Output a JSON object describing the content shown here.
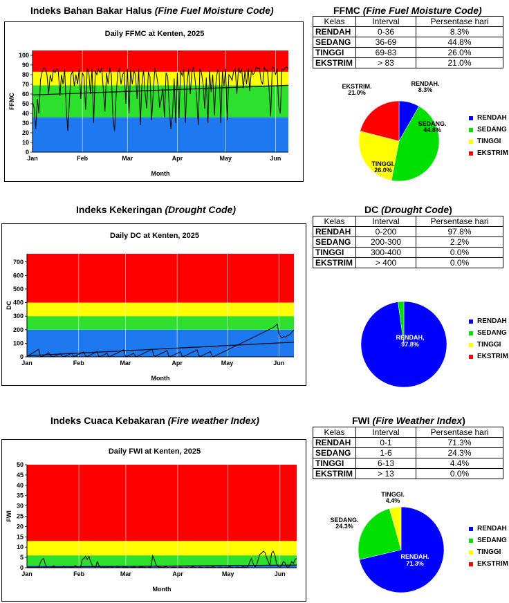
{
  "colors": {
    "rendah": "#1e78f0",
    "sedang": "#2ee02e",
    "tinggi": "#ffff00",
    "ekstrim": "#ff0000",
    "pie_rendah": "#0000ff",
    "pie_sedang": "#00e000",
    "pie_tinggi": "#ffff00",
    "pie_ekstrim": "#ff0000"
  },
  "months": [
    "Jan",
    "Feb",
    "Mar",
    "Apr",
    "May",
    "Jun"
  ],
  "sections": [
    {
      "title_main": "Indeks Bahan Bakar Halus ",
      "title_italic": "(Fine Fuel Moisture Code)",
      "table_title_main": "FFMC ",
      "table_title_italic": "(Fine Fuel Moisture Code)",
      "headers": [
        "Kelas",
        "Interval",
        "Persentase hari"
      ],
      "rows": [
        {
          "kelas": "RENDAH",
          "interval": "0-36",
          "pct": "8.3%"
        },
        {
          "kelas": "SEDANG",
          "interval": "36-69",
          "pct": "44.8%"
        },
        {
          "kelas": "TINGGI",
          "interval": "69-83",
          "pct": "26.0%"
        },
        {
          "kelas": "EKSTRIM",
          "interval": "> 83",
          "pct": "21.0%"
        }
      ],
      "pie_labels": [
        {
          "name": "RENDAH.",
          "pct": "8.3%"
        },
        {
          "name": "SEDANG.",
          "pct": "44.8%"
        },
        {
          "name": "TINGGI.",
          "pct": "26.0%"
        },
        {
          "name": "EKSTRIM.",
          "pct": "21.0%"
        }
      ],
      "legend": [
        "RENDAH",
        "SEDANG",
        "TINGGI",
        "EKSTRIM"
      ]
    },
    {
      "title_main": "Indeks Kekeringan ",
      "title_italic": "(Drought Code)",
      "table_title_main": "DC ",
      "table_title_italic": "(Drought Code",
      "table_title_tail": ")",
      "headers": [
        "Kelas",
        "Interval",
        "Persentase hari"
      ],
      "rows": [
        {
          "kelas": "RENDAH",
          "interval": "0-200",
          "pct": "97.8%"
        },
        {
          "kelas": "SEDANG",
          "interval": "200-300",
          "pct": "2.2%"
        },
        {
          "kelas": "TINGGI",
          "interval": "300-400",
          "pct": "0.0%"
        },
        {
          "kelas": "EKSTRIM",
          "interval": "> 400",
          "pct": "0.0%"
        }
      ],
      "pie_labels": [
        {
          "name": "RENDAH,",
          "pct": "97.8%"
        }
      ],
      "legend": [
        "RENDAH",
        "SEDANG",
        "TINGGI",
        "EKSTRIM"
      ]
    },
    {
      "title_main": "Indeks Cuaca Kebakaran ",
      "title_italic": "(Fire weather Index)",
      "table_title_main": "FWI ",
      "table_title_italic": "(Fire Weather Index",
      "table_title_tail": ")",
      "headers": [
        "Kelas",
        "Interval",
        "Persentase hari"
      ],
      "rows": [
        {
          "kelas": "RENDAH",
          "interval": "0-1",
          "pct": "71.3%"
        },
        {
          "kelas": "SEDANG",
          "interval": "1-6",
          "pct": "24.3%"
        },
        {
          "kelas": "TINGGI",
          "interval": "6-13",
          "pct": "4.4%"
        },
        {
          "kelas": "EKSTRIM",
          "interval": "> 13",
          "pct": "0.0%"
        }
      ],
      "pie_labels": [
        {
          "name": "RENDAH.",
          "pct": "71.3%"
        },
        {
          "name": "SEDANG.",
          "pct": "24.3%"
        },
        {
          "name": "TINGGI.",
          "pct": "4.4%"
        }
      ],
      "legend": [
        "RENDAH",
        "SEDANG",
        "TINGGI",
        "EKSTRIM"
      ]
    }
  ],
  "chart_data": [
    {
      "type": "line",
      "title": "Daily FFMC at Kenten, 2025",
      "xlabel": "Month",
      "ylabel": "FFMC",
      "ylim": [
        0,
        105
      ],
      "yticks": [
        0,
        10,
        20,
        30,
        40,
        50,
        60,
        70,
        80,
        90,
        100
      ],
      "xticks": [
        "Jan",
        "Feb",
        "Mar",
        "Apr",
        "May",
        "Jun"
      ],
      "bands": [
        [
          0,
          36,
          "rendah"
        ],
        [
          36,
          69,
          "sedang"
        ],
        [
          69,
          83,
          "tinggi"
        ],
        [
          83,
          105,
          "ekstrim"
        ]
      ],
      "trend": [
        59,
        69
      ],
      "series": [
        {
          "values": [
            52,
            46,
            24,
            55,
            40,
            75,
            83,
            87,
            86,
            80,
            60,
            80,
            73,
            85,
            82,
            86,
            85,
            58,
            80,
            70,
            86,
            43,
            22,
            55,
            80,
            84,
            68,
            80,
            70,
            86,
            55,
            82,
            78,
            44,
            86,
            83,
            60,
            86,
            30,
            84,
            80,
            86,
            82,
            87,
            65,
            42,
            82,
            70,
            87,
            80,
            35,
            22,
            60,
            82,
            86,
            70,
            80,
            83,
            50,
            86,
            40,
            85,
            70,
            84,
            80,
            55,
            86,
            28,
            70,
            85,
            60,
            45,
            83,
            78,
            33,
            60,
            87,
            80,
            70,
            46,
            55,
            66,
            36,
            82,
            78,
            45,
            24,
            40,
            76,
            30,
            82,
            35,
            84,
            79,
            86,
            30,
            70,
            86,
            60,
            82,
            88,
            76,
            56,
            28,
            86,
            82,
            70,
            45,
            77,
            30,
            84,
            62,
            80,
            38,
            72,
            85,
            83,
            30,
            84,
            68,
            86,
            33,
            80,
            78,
            74,
            84,
            86,
            60,
            87,
            82,
            86,
            66,
            84,
            70,
            87,
            63,
            85,
            80,
            82,
            88,
            86,
            87,
            74,
            70,
            88,
            84,
            85,
            65,
            37,
            88,
            87,
            80,
            86,
            48,
            40,
            86,
            85,
            87,
            88,
            86
          ]
        }
      ]
    },
    {
      "type": "line",
      "title": "Daily DC at Kenten, 2025",
      "xlabel": "Month",
      "ylabel": "DC",
      "ylim": [
        0,
        760
      ],
      "yticks": [
        0,
        100,
        200,
        300,
        400,
        500,
        600,
        700
      ],
      "xticks": [
        "Jan",
        "Feb",
        "Mar",
        "Apr",
        "May",
        "Jun"
      ],
      "bands": [
        [
          0,
          200,
          "rendah"
        ],
        [
          200,
          300,
          "sedang"
        ],
        [
          300,
          400,
          "tinggi"
        ],
        [
          400,
          760,
          "ekstrim"
        ]
      ],
      "trend": [
        8,
        108
      ],
      "series": [
        {
          "values": [
            5,
            10,
            18,
            25,
            32,
            40,
            48,
            55,
            5,
            3,
            8,
            15,
            22,
            30,
            8,
            4,
            2,
            6,
            12,
            18,
            25,
            3,
            2,
            5,
            10,
            16,
            22,
            28,
            2,
            6,
            12,
            18,
            24,
            30,
            36,
            8,
            3,
            8,
            14,
            20,
            26,
            32,
            40,
            5,
            2,
            8,
            14,
            20,
            26,
            2,
            4,
            10,
            16,
            22,
            28,
            34,
            40,
            46,
            52,
            6,
            3,
            9,
            15,
            21,
            27,
            4,
            2,
            8,
            14,
            20,
            26,
            32,
            38,
            44,
            50,
            56,
            10,
            4,
            10,
            16,
            22,
            28,
            34,
            40,
            46,
            6,
            2,
            8,
            14,
            20,
            26,
            32,
            38,
            5,
            3,
            9,
            15,
            21,
            27,
            33,
            39,
            45,
            51,
            8,
            3,
            9,
            15,
            21,
            27,
            33,
            39,
            5,
            2,
            8,
            14,
            20,
            26,
            32,
            38,
            44,
            50,
            56,
            62,
            68,
            74,
            80,
            86,
            92,
            98,
            104,
            110,
            116,
            122,
            128,
            134,
            140,
            146,
            152,
            158,
            164,
            170,
            176,
            182,
            188,
            194,
            200,
            206,
            212,
            220,
            232,
            240,
            170,
            150,
            140,
            150,
            145,
            155,
            160,
            170,
            185,
            198
          ]
        }
      ]
    },
    {
      "type": "line",
      "title": "Daily FWI at Kenten, 2025",
      "xlabel": "Month",
      "ylabel": "FWI",
      "ylim": [
        0,
        50
      ],
      "yticks": [
        0,
        5,
        10,
        15,
        20,
        25,
        30,
        35,
        40,
        45,
        50
      ],
      "xticks": [
        "Jan",
        "Feb",
        "Mar",
        "Apr",
        "May",
        "Jun"
      ],
      "bands": [
        [
          0,
          1,
          "rendah"
        ],
        [
          1,
          6,
          "sedang"
        ],
        [
          6,
          13,
          "tinggi"
        ],
        [
          13,
          50,
          "ekstrim"
        ]
      ],
      "trend": [
        0.3,
        1.3
      ],
      "series": [
        {
          "values": [
            0.5,
            0.2,
            0,
            0.3,
            0.1,
            0,
            0.2,
            0.4,
            2.5,
            4,
            4.5,
            1.5,
            0.3,
            0,
            0.2,
            0.5,
            1,
            0.2,
            0,
            0.3,
            0.1,
            0.4,
            0.8,
            0.2,
            0,
            0.1,
            0.3,
            0.2,
            0.5,
            1,
            0.3,
            0,
            0.2,
            4,
            4.5,
            5.5,
            4,
            5.5,
            3,
            1,
            0.5,
            0.2,
            3,
            1,
            0.2,
            0,
            0.3,
            0.1,
            0.2,
            0.5,
            0.4,
            0.2,
            0,
            0.1,
            0.3,
            0.2,
            0,
            0.1,
            0.5,
            0.3,
            0.2,
            0,
            0.1,
            0.2,
            0.3,
            0.1,
            0,
            0.2,
            0.4,
            0.3,
            0.2,
            0.1,
            0,
            0.3,
            0.2,
            5.8,
            4,
            1.5,
            0.5,
            0.3,
            0.2,
            0.1,
            0.3,
            0.5,
            0.2,
            0,
            0.1,
            0.2,
            0.3,
            0.1,
            0,
            0.2,
            0.3,
            0.1,
            0,
            0.2,
            0.1,
            0,
            0.3,
            0.5,
            0.2,
            0.1,
            0,
            0.3,
            0.2,
            0.1,
            0,
            0.2,
            0.3,
            0.1,
            0.2,
            0.4,
            0.2,
            0,
            0.1,
            0.3,
            0.2,
            0,
            0.1,
            0.2,
            0.3,
            0.5,
            0.2,
            0.1,
            0,
            0.2,
            0.3,
            0.1,
            0.2,
            0.4,
            0.3,
            0.2,
            0.5,
            3,
            4.5,
            2,
            0.5,
            1,
            4,
            6.5,
            7,
            8,
            7.5,
            5,
            3,
            1,
            7,
            8,
            6,
            2,
            0.5,
            0.3,
            1,
            3,
            2.5,
            0.5,
            0.2,
            1,
            3,
            2,
            4,
            4.5
          ]
        }
      ]
    }
  ],
  "pies": [
    {
      "values": [
        8.3,
        44.8,
        26.0,
        21.0
      ]
    },
    {
      "values": [
        97.8,
        2.2,
        0.0,
        0.0
      ]
    },
    {
      "values": [
        71.3,
        24.3,
        4.4,
        0.0
      ]
    }
  ]
}
